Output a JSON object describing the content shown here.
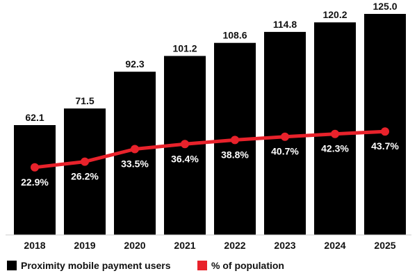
{
  "chart_data": {
    "type": "bar",
    "categories": [
      "2018",
      "2019",
      "2020",
      "2021",
      "2022",
      "2023",
      "2024",
      "2025"
    ],
    "series": [
      {
        "name": "Proximity mobile payment users",
        "type": "bar",
        "values": [
          62.1,
          71.5,
          92.3,
          101.2,
          108.6,
          114.8,
          120.2,
          125.0
        ],
        "labels": [
          "62.1",
          "71.5",
          "92.3",
          "101.2",
          "108.6",
          "114.8",
          "120.2",
          "125.0"
        ],
        "color": "#000000"
      },
      {
        "name": "% of population",
        "type": "line",
        "values": [
          22.9,
          26.2,
          33.5,
          36.4,
          38.8,
          40.7,
          42.3,
          43.7
        ],
        "labels": [
          "22.9%",
          "26.2%",
          "33.5%",
          "36.4%",
          "38.8%",
          "40.7%",
          "42.3%",
          "43.7%"
        ],
        "color": "#e8222b"
      }
    ],
    "ylim": [
      0,
      125
    ],
    "grid": false,
    "legend_position": "bottom-left"
  }
}
